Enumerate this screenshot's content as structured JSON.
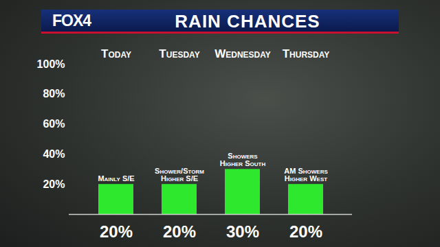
{
  "chart_data": {
    "type": "bar",
    "logo": "FOX4",
    "title": "RAIN CHANCES",
    "categories": [
      "Today",
      "Tuesday",
      "Wednesday",
      "Thursday"
    ],
    "values": [
      20,
      20,
      30,
      20
    ],
    "value_labels": [
      "20%",
      "20%",
      "30%",
      "20%"
    ],
    "data_labels": true,
    "annotations": [
      "Mainly S/E",
      "Shower/Storm Higher S/E",
      "Showers Higher South",
      "AM Showers Higher West"
    ],
    "color": "#2ee82e",
    "ylim": [
      0,
      100
    ],
    "yticks": [
      {
        "value": 20,
        "label": "20%"
      },
      {
        "value": 40,
        "label": "40%"
      },
      {
        "value": 60,
        "label": "60%"
      },
      {
        "value": 80,
        "label": "80%"
      },
      {
        "value": 100,
        "label": "100%"
      }
    ],
    "grid": false
  }
}
